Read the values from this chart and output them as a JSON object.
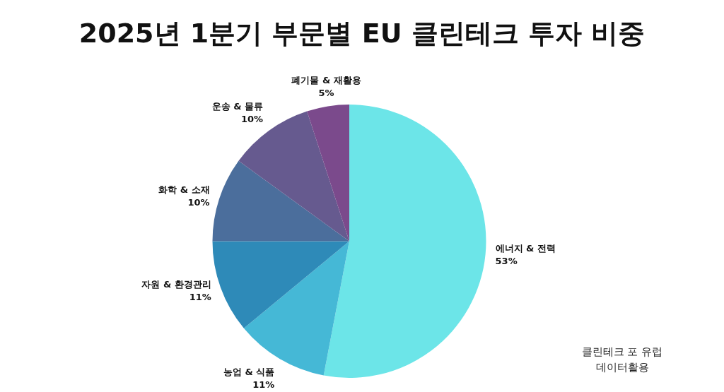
{
  "chart_data": {
    "type": "pie",
    "title": "2025년 1분기 부문별 EU 클린테크 투자 비중",
    "categories": [
      "에너지 & 전력",
      "농업 & 식품",
      "자원 & 환경관리",
      "화학 & 소재",
      "운송 & 물류",
      "폐기물 & 재활용"
    ],
    "values": [
      53,
      11,
      11,
      10,
      10,
      5
    ],
    "colors": [
      "#6ce5e8",
      "#45b8d6",
      "#2e8ab8",
      "#4b6e9c",
      "#665a8f",
      "#7b4a8c"
    ],
    "value_labels": [
      "53%",
      "11%",
      "11%",
      "10%",
      "10%",
      "5%"
    ],
    "legend": false,
    "annotations": [
      "클린테크 포 유럽\n데이터활용"
    ]
  }
}
